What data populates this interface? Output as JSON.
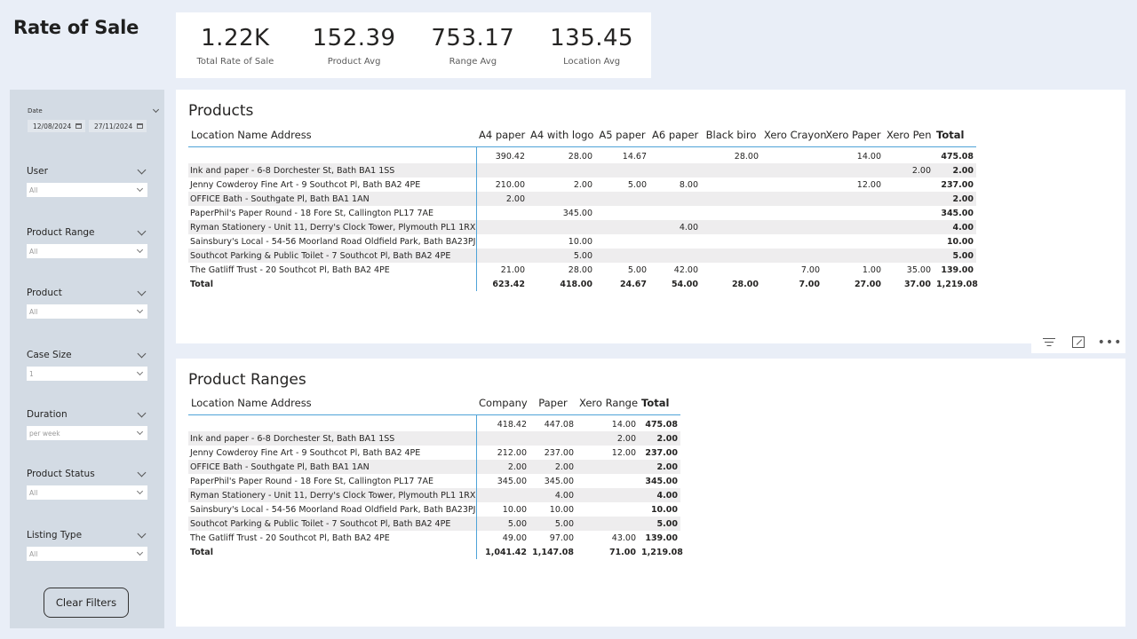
{
  "page_title": "Rate of Sale",
  "kpis": [
    {
      "value": "1.22K",
      "label": "Total Rate of Sale"
    },
    {
      "value": "152.39",
      "label": "Product Avg"
    },
    {
      "value": "753.17",
      "label": "Range Avg"
    },
    {
      "value": "135.45",
      "label": "Location Avg"
    }
  ],
  "filters": {
    "date": {
      "label": "Date",
      "start": "12/08/2024",
      "end": "27/11/2024"
    },
    "slicers": [
      {
        "label": "User",
        "value": "All"
      },
      {
        "label": "Product Range",
        "value": "All"
      },
      {
        "label": "Product",
        "value": "All"
      },
      {
        "label": "Case Size",
        "value": "1"
      },
      {
        "label": "Duration",
        "value": "per week"
      },
      {
        "label": "Product Status",
        "value": "All"
      },
      {
        "label": "Listing Type",
        "value": "All"
      }
    ],
    "clear_label": "Clear Filters"
  },
  "products_visual": {
    "title": "Products",
    "row_header": "Location Name Address",
    "columns": [
      "A4 paper",
      "A4 with logo",
      "A5 paper",
      "A6 paper",
      "Black biro",
      "Xero Crayon",
      "Xero Paper",
      "Xero Pen",
      "Total"
    ],
    "rows": [
      {
        "label": "",
        "values": [
          "390.42",
          "28.00",
          "14.67",
          "",
          "28.00",
          "",
          "14.00",
          "",
          "475.08"
        ]
      },
      {
        "label": "Ink and paper - 6-8 Dorchester St, Bath BA1 1SS",
        "values": [
          "",
          "",
          "",
          "",
          "",
          "",
          "",
          "2.00",
          "2.00"
        ]
      },
      {
        "label": "Jenny Cowderoy Fine Art - 9 Southcot Pl, Bath BA2 4PE",
        "values": [
          "210.00",
          "2.00",
          "5.00",
          "8.00",
          "",
          "",
          "12.00",
          "",
          "237.00"
        ]
      },
      {
        "label": "OFFICE Bath - Southgate Pl, Bath BA1 1AN",
        "values": [
          "2.00",
          "",
          "",
          "",
          "",
          "",
          "",
          "",
          "2.00"
        ]
      },
      {
        "label": "PaperPhil's Paper Round - 18 Fore St, Callington PL17 7AE",
        "values": [
          "",
          "345.00",
          "",
          "",
          "",
          "",
          "",
          "",
          "345.00"
        ]
      },
      {
        "label": "Ryman Stationery - Unit 11, Derry's Clock Tower, Plymouth PL1 1RX",
        "values": [
          "",
          "",
          "",
          "4.00",
          "",
          "",
          "",
          "",
          "4.00"
        ]
      },
      {
        "label": "Sainsbury's Local - 54-56 Moorland Road Oldfield Park, Bath BA23PJ",
        "values": [
          "",
          "10.00",
          "",
          "",
          "",
          "",
          "",
          "",
          "10.00"
        ]
      },
      {
        "label": "Southcot Parking & Public Toilet - 7 Southcot Pl, Bath BA2 4PE",
        "values": [
          "",
          "5.00",
          "",
          "",
          "",
          "",
          "",
          "",
          "5.00"
        ]
      },
      {
        "label": "The Gatliff Trust - 20 Southcot Pl, Bath BA2 4PE",
        "values": [
          "21.00",
          "28.00",
          "5.00",
          "42.00",
          "",
          "7.00",
          "1.00",
          "35.00",
          "139.00"
        ]
      }
    ],
    "total": {
      "label": "Total",
      "values": [
        "623.42",
        "418.00",
        "24.67",
        "54.00",
        "28.00",
        "7.00",
        "27.00",
        "37.00",
        "1,219.08"
      ]
    }
  },
  "ranges_visual": {
    "title": "Product Ranges",
    "row_header": "Location Name Address",
    "columns": [
      "Company",
      "Paper",
      "Xero Range",
      "Total"
    ],
    "rows": [
      {
        "label": "",
        "values": [
          "418.42",
          "447.08",
          "14.00",
          "475.08"
        ]
      },
      {
        "label": "Ink and paper - 6-8 Dorchester St, Bath BA1 1SS",
        "values": [
          "",
          "",
          "2.00",
          "2.00"
        ]
      },
      {
        "label": "Jenny Cowderoy Fine Art - 9 Southcot Pl, Bath BA2 4PE",
        "values": [
          "212.00",
          "237.00",
          "12.00",
          "237.00"
        ]
      },
      {
        "label": "OFFICE Bath - Southgate Pl, Bath BA1 1AN",
        "values": [
          "2.00",
          "2.00",
          "",
          "2.00"
        ]
      },
      {
        "label": "PaperPhil's Paper Round - 18 Fore St, Callington PL17 7AE",
        "values": [
          "345.00",
          "345.00",
          "",
          "345.00"
        ]
      },
      {
        "label": "Ryman Stationery - Unit 11, Derry's Clock Tower, Plymouth PL1 1RX",
        "values": [
          "",
          "4.00",
          "",
          "4.00"
        ]
      },
      {
        "label": "Sainsbury's Local - 54-56 Moorland Road Oldfield Park, Bath BA23PJ",
        "values": [
          "10.00",
          "10.00",
          "",
          "10.00"
        ]
      },
      {
        "label": "Southcot Parking & Public Toilet - 7 Southcot Pl, Bath BA2 4PE",
        "values": [
          "5.00",
          "5.00",
          "",
          "5.00"
        ]
      },
      {
        "label": "The Gatliff Trust - 20 Southcot Pl, Bath BA2 4PE",
        "values": [
          "49.00",
          "97.00",
          "43.00",
          "139.00"
        ]
      }
    ],
    "total": {
      "label": "Total",
      "values": [
        "1,041.42",
        "1,147.08",
        "71.00",
        "1,219.08"
      ]
    }
  },
  "toolbar_icons": [
    "filter-icon",
    "focus-mode-icon",
    "more-options-icon"
  ]
}
